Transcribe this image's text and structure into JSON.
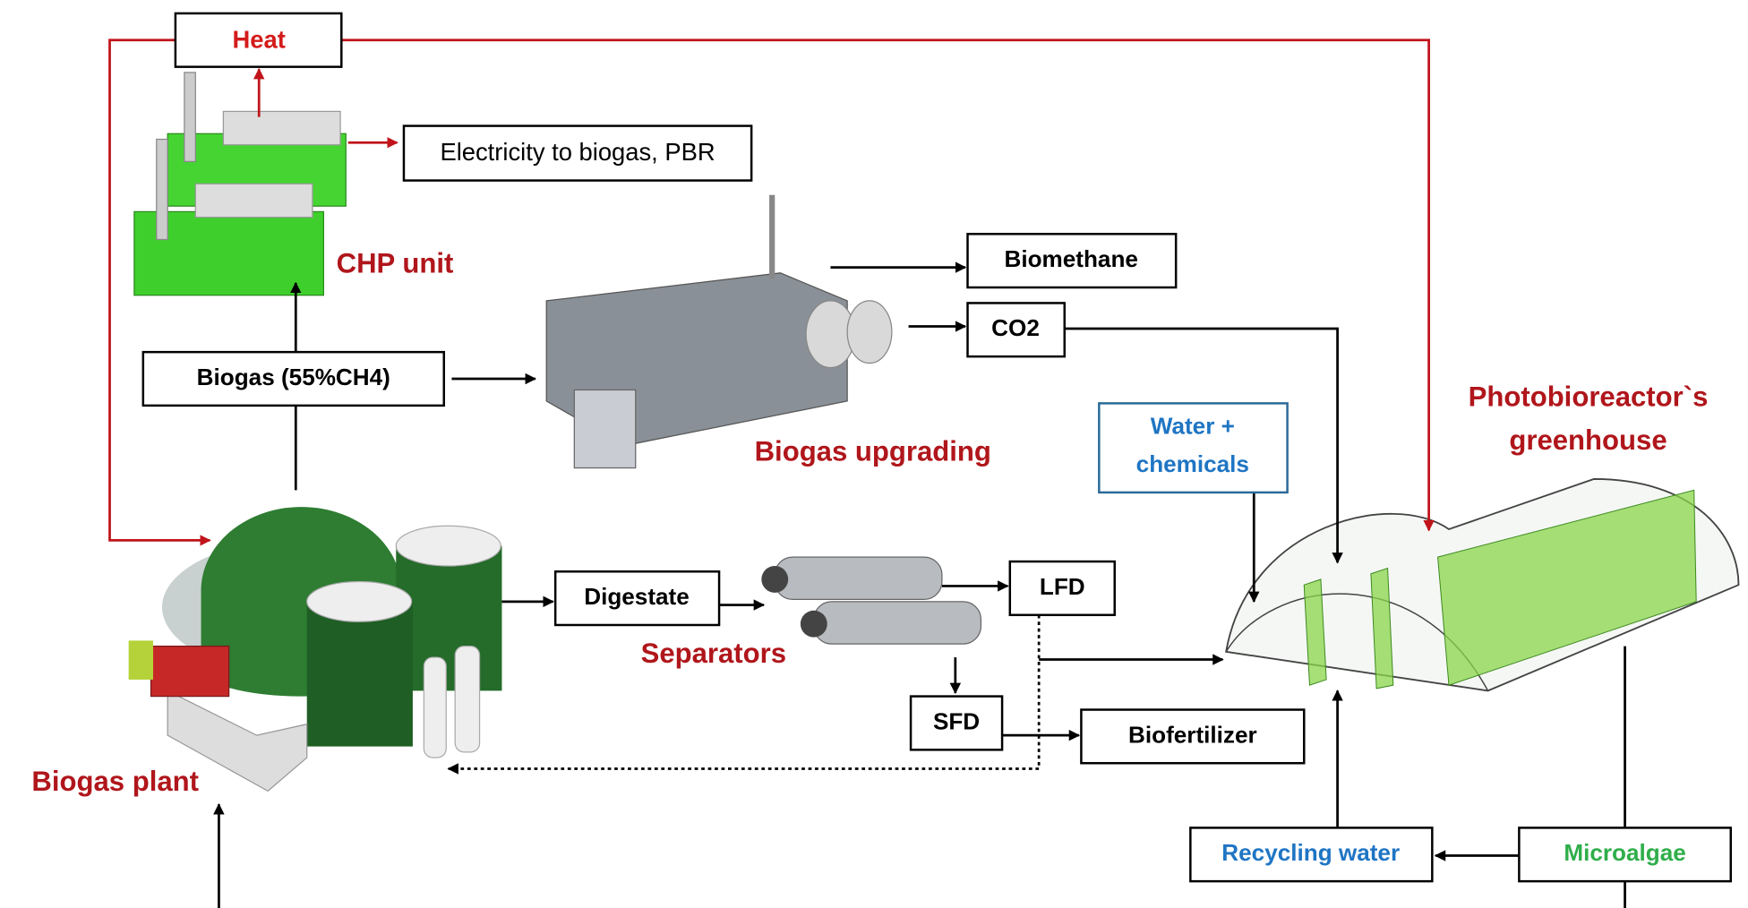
{
  "heat": "Heat",
  "electricity": "Electricity to biogas, PBR",
  "chp_unit": "CHP unit",
  "biomethane": "Biomethane",
  "co2": "CO2",
  "biogas": "Biogas (55%CH4)",
  "biogas_upgrading": "Biogas upgrading",
  "greenhouse": [
    "Photobioreactor`s",
    "greenhouse"
  ],
  "water_chemicals": [
    "Water +",
    "chemicals"
  ],
  "digestate": "Digestate",
  "lfd": "LFD",
  "separators": "Separators",
  "sfd": "SFD",
  "biofertilizer": "Biofertilizer",
  "biogas_plant": "Biogas plant",
  "recycling_water": "Recycling water",
  "microalgae": "Microalgae"
}
